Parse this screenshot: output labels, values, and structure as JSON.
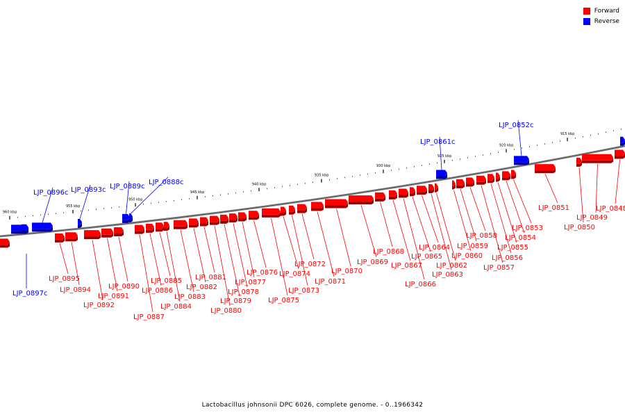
{
  "legend": {
    "forward": {
      "label": "Forward",
      "color": "#ff0000"
    },
    "reverse": {
      "label": "Reverse",
      "color": "#0000ff"
    }
  },
  "caption": "Lactobacillus johnsonii DPC 6026, complete genome. - 0..1966342",
  "ruler_labels": [
    "960 kbp",
    "955 kbp",
    "950 kbp",
    "945 kbp",
    "940 kbp",
    "935 kbp",
    "930 kbp",
    "925 kbp",
    "920 kbp",
    "915 kbp"
  ],
  "genes_forward": [
    "LJP_0848",
    "LJP_0849",
    "LJP_0850",
    "LJP_0851",
    "LJP_0853",
    "LJP_0854",
    "LJP_0855",
    "LJP_0856",
    "LJP_0857",
    "LJP_0858",
    "LJP_0859",
    "LJP_0860",
    "LJP_0862",
    "LJP_0863",
    "LJP_0864",
    "LJP_0865",
    "LJP_0866",
    "LJP_0867",
    "LJP_0868",
    "LJP_0869",
    "LJP_0870",
    "LJP_0871",
    "LJP_0872",
    "LJP_0873",
    "LJP_0874",
    "LJP_0875",
    "LJP_0876",
    "LJP_0877",
    "LJP_0878",
    "LJP_0879",
    "LJP_0880",
    "LJP_0881",
    "LJP_0882",
    "LJP_0883",
    "LJP_0884",
    "LJP_0885",
    "LJP_0886",
    "LJP_0887",
    "LJP_0890",
    "LJP_0891",
    "LJP_0892",
    "LJP_0894",
    "LJP_0895"
  ],
  "genes_reverse": [
    "LJP_0852c",
    "LJP_0861c",
    "LJP_0888c",
    "LJP_0889c",
    "LJP_0893c",
    "LJP_0896c",
    "LJP_0897c"
  ]
}
